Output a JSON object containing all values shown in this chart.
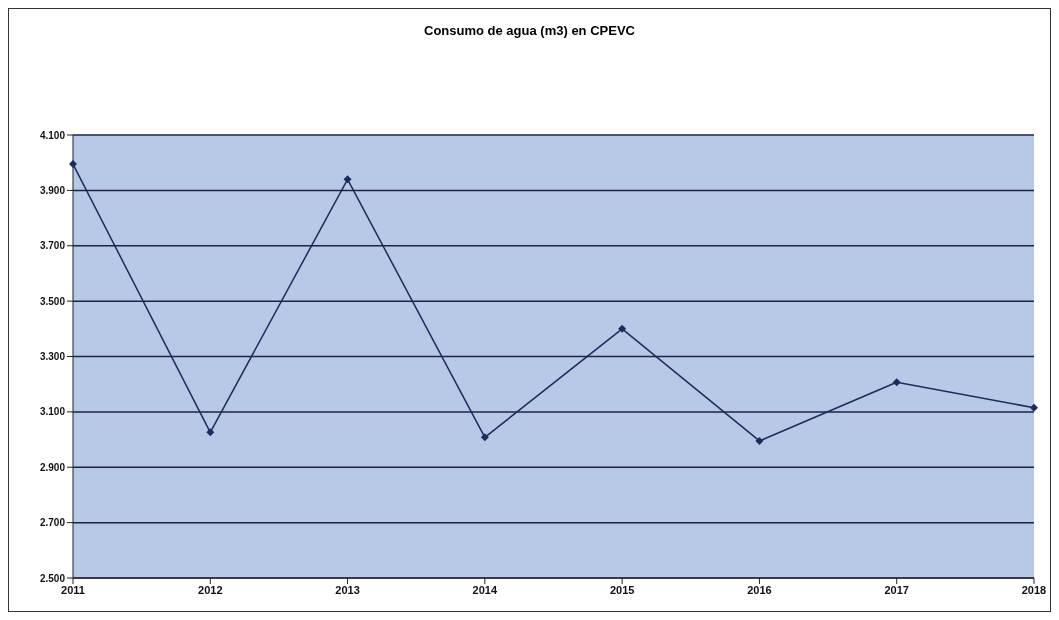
{
  "chart_data": {
    "type": "line",
    "title": "Consumo de agua (m3) en CPEVC",
    "categories": [
      "2011",
      "2012",
      "2013",
      "2014",
      "2015",
      "2016",
      "2017",
      "2018"
    ],
    "series": [
      {
        "color": "#1f2a5c",
        "values": [
          3995,
          3026,
          3940,
          3008,
          3400,
          2995,
          3207,
          3115
        ]
      }
    ],
    "ylim": [
      2500,
      4100
    ],
    "yticks": [
      {
        "value": 2500,
        "label": "2.500"
      },
      {
        "value": 2700,
        "label": "2.700"
      },
      {
        "value": 2900,
        "label": "2.900"
      },
      {
        "value": 3100,
        "label": "3.100"
      },
      {
        "value": 3300,
        "label": "3.300"
      },
      {
        "value": 3500,
        "label": "3.500"
      },
      {
        "value": 3700,
        "label": "3.700"
      },
      {
        "value": 3900,
        "label": "3.900"
      },
      {
        "value": 4100,
        "label": "4.100"
      }
    ],
    "grid": "y",
    "marker": "diamond",
    "line_style": "solid",
    "legend": false
  }
}
